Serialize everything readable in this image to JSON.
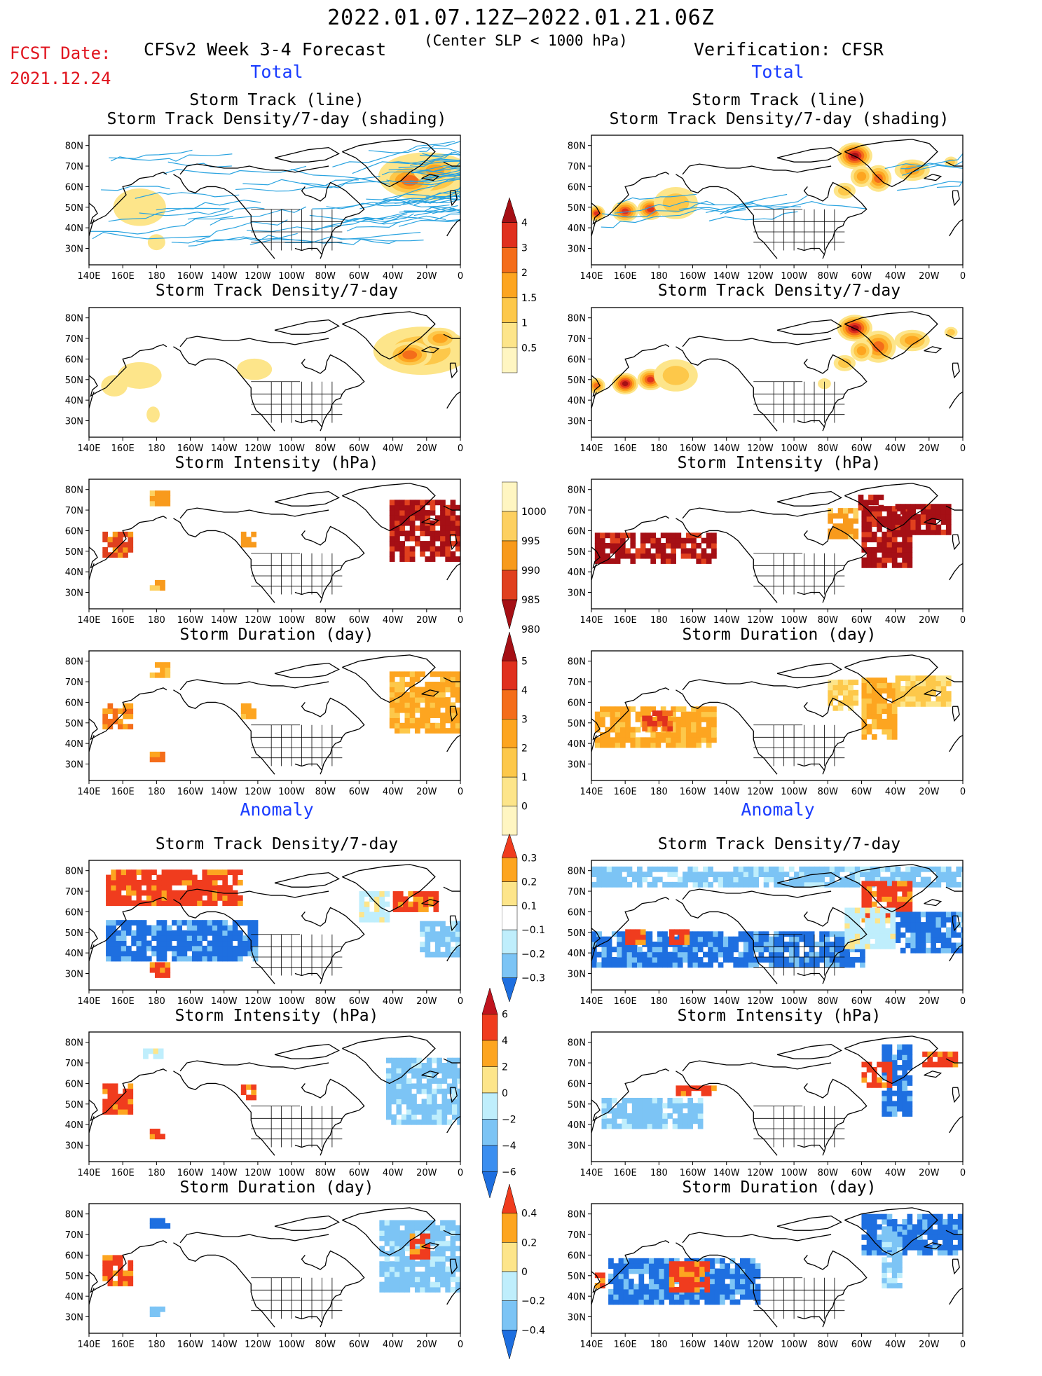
{
  "header": {
    "period": "2022.01.07.12Z–2022.01.21.06Z",
    "fcst_date_label": "FCST Date:",
    "fcst_date": "2021.12.24",
    "model": "CFSv2 Week 3-4 Forecast",
    "criterion": "(Center SLP < 1000 hPa)",
    "verification": "Verification: CFSR"
  },
  "sections": {
    "total_left": "Total",
    "total_right": "Total",
    "anomaly_left": "Anomaly",
    "anomaly_right": "Anomaly"
  },
  "axes": {
    "lat_labels": [
      "80N",
      "70N",
      "60N",
      "50N",
      "40N",
      "30N"
    ],
    "lon_labels": [
      "140E",
      "160E",
      "180",
      "160W",
      "140W",
      "120W",
      "100W",
      "80W",
      "60W",
      "40W",
      "20W",
      "0"
    ]
  },
  "panels": {
    "r1_left": "Storm Track (line)\nStorm Track Density/7-day (shading)",
    "r1_right": "Storm Track (line)\nStorm Track Density/7-day (shading)",
    "r2_left": "Storm Track Density/7-day",
    "r2_right": "Storm Track Density/7-day",
    "r3_left": "Storm Intensity (hPa)",
    "r3_right": "Storm Intensity (hPa)",
    "r4_left": "Storm Duration (day)",
    "r4_right": "Storm Duration (day)",
    "r5_left": "Storm Track Density/7-day",
    "r5_right": "Storm Track Density/7-day",
    "r6_left": "Storm Intensity (hPa)",
    "r6_right": "Storm Intensity (hPa)",
    "r7_left": "Storm Duration (day)",
    "r7_right": "Storm Duration (day)"
  },
  "colorbars": {
    "density": {
      "labels": [
        "4",
        "3",
        "2",
        "1.5",
        "1",
        "0.5"
      ],
      "colors": [
        "#a50f15",
        "#e0301e",
        "#f46d1a",
        "#fda520",
        "#fdc84a",
        "#fde58a",
        "#fff6c2"
      ]
    },
    "intensity": {
      "labels": [
        "1000",
        "995",
        "990",
        "985",
        "980"
      ],
      "colors": [
        "#fff6c2",
        "#fdd060",
        "#f89a1c",
        "#e0401e",
        "#a50f15"
      ]
    },
    "duration": {
      "labels": [
        "5",
        "4",
        "3",
        "2",
        "1",
        "0"
      ],
      "colors": [
        "#a50f15",
        "#e0301e",
        "#f46d1a",
        "#fda520",
        "#fdc84a",
        "#fde58a",
        "#fff6c2"
      ]
    },
    "anom_density": {
      "labels": [
        "0.3",
        "0.2",
        "0.1",
        "−0.1",
        "−0.2",
        "−0.3"
      ],
      "colors": [
        "#f03c1e",
        "#fda520",
        "#fde58a",
        "#ffffff",
        "#bfeefc",
        "#7cc4f5",
        "#1e6fe0"
      ]
    },
    "anom_intensity": {
      "labels": [
        "6",
        "4",
        "2",
        "0",
        "−2",
        "−4",
        "−6"
      ],
      "colors": [
        "#c0141e",
        "#f03c1e",
        "#fda520",
        "#fde58a",
        "#bfeefc",
        "#7cc4f5",
        "#3a8ef0",
        "#1e6fe0"
      ]
    },
    "anom_duration": {
      "labels": [
        "0.4",
        "0.2",
        "0",
        "−0.2",
        "−0.4"
      ],
      "colors": [
        "#f03c1e",
        "#fda520",
        "#fde58a",
        "#bfeefc",
        "#7cc4f5",
        "#1e6fe0"
      ]
    }
  },
  "colors": {
    "title_red": "#e0141e",
    "section_blue": "#1a3cff",
    "track_line": "#29a3e0"
  }
}
